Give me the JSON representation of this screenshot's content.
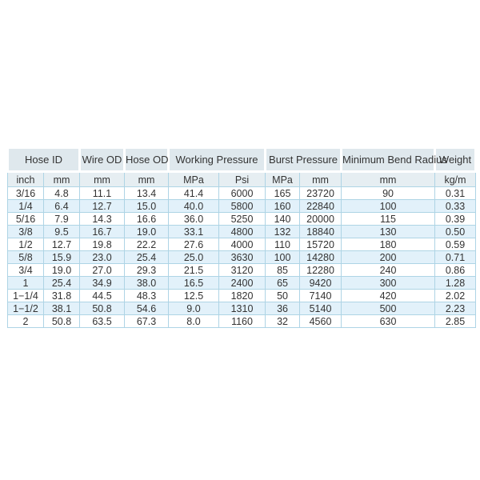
{
  "table": {
    "group_headers": [
      {
        "label": "Hose ID",
        "span": 2
      },
      {
        "label": "Wire OD",
        "span": 1
      },
      {
        "label": "Hose OD",
        "span": 1
      },
      {
        "label": "Working Pressure",
        "span": 2
      },
      {
        "label": "Burst Pressure",
        "span": 2
      },
      {
        "label": "Minimum Bend Radius",
        "span": 1
      },
      {
        "label": "Weight",
        "span": 1
      }
    ],
    "unit_headers": [
      "inch",
      "mm",
      "mm",
      "mm",
      "MPa",
      "Psi",
      "MPa",
      "mm",
      "mm",
      "kg/m"
    ],
    "rows": [
      [
        "3/16",
        "4.8",
        "11.1",
        "13.4",
        "41.4",
        "6000",
        "165",
        "23720",
        "90",
        "0.31"
      ],
      [
        "1/4",
        "6.4",
        "12.7",
        "15.0",
        "40.0",
        "5800",
        "160",
        "22840",
        "100",
        "0.33"
      ],
      [
        "5/16",
        "7.9",
        "14.3",
        "16.6",
        "36.0",
        "5250",
        "140",
        "20000",
        "115",
        "0.39"
      ],
      [
        "3/8",
        "9.5",
        "16.7",
        "19.0",
        "33.1",
        "4800",
        "132",
        "18840",
        "130",
        "0.50"
      ],
      [
        "1/2",
        "12.7",
        "19.8",
        "22.2",
        "27.6",
        "4000",
        "110",
        "15720",
        "180",
        "0.59"
      ],
      [
        "5/8",
        "15.9",
        "23.0",
        "25.4",
        "25.0",
        "3630",
        "100",
        "14280",
        "200",
        "0.71"
      ],
      [
        "3/4",
        "19.0",
        "27.0",
        "29.3",
        "21.5",
        "3120",
        "85",
        "12280",
        "240",
        "0.86"
      ],
      [
        "1",
        "25.4",
        "34.9",
        "38.0",
        "16.5",
        "2400",
        "65",
        "9420",
        "300",
        "1.28"
      ],
      [
        "1−1/4",
        "31.8",
        "44.5",
        "48.3",
        "12.5",
        "1820",
        "50",
        "7140",
        "420",
        "2.02"
      ],
      [
        "1−1/2",
        "38.1",
        "50.8",
        "54.6",
        "9.0",
        "1310",
        "36",
        "5140",
        "500",
        "2.23"
      ],
      [
        "2",
        "50.8",
        "63.5",
        "67.3",
        "8.0",
        "1160",
        "32",
        "4560",
        "630",
        "2.85"
      ]
    ],
    "colors": {
      "group_header_bg": "#dfe8ed",
      "unit_header_bg": "#e6eef2",
      "row_alt_bg": "#e2f1fa",
      "border": "#aed4e5",
      "text": "#333333",
      "page_bg": "#ffffff"
    }
  }
}
